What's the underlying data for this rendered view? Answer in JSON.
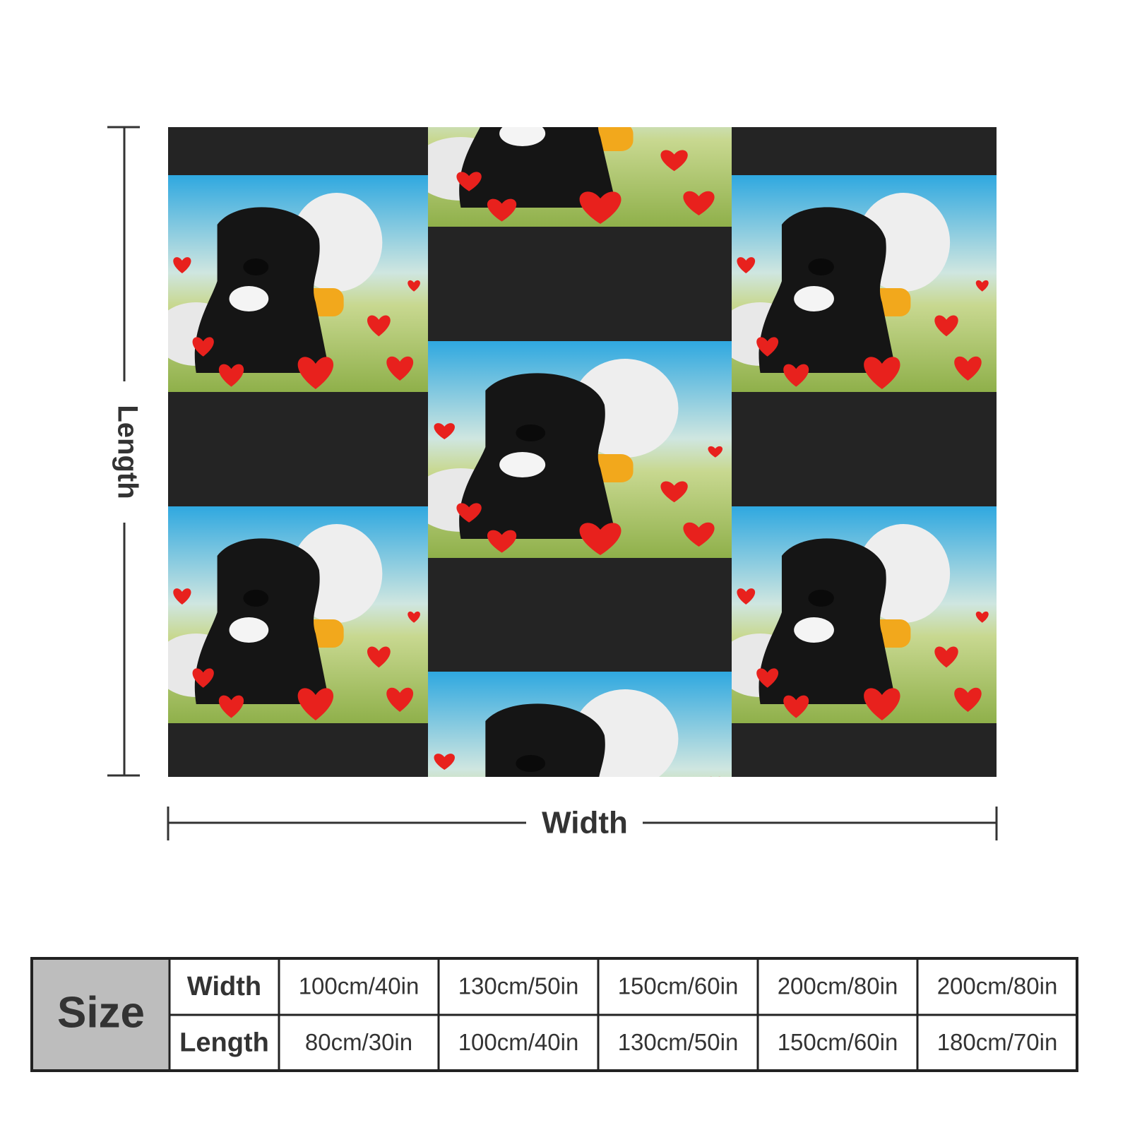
{
  "labels": {
    "length": "Length",
    "width": "Width"
  },
  "table": {
    "header": "Size",
    "rows": [
      [
        "Width",
        "100cm/40in",
        "130cm/50in",
        "150cm/60in",
        "200cm/80in",
        "200cm/80in"
      ],
      [
        "Length",
        "80cm/30in",
        "100cm/40in",
        "130cm/50in",
        "150cm/60in",
        "180cm/70in"
      ]
    ]
  }
}
